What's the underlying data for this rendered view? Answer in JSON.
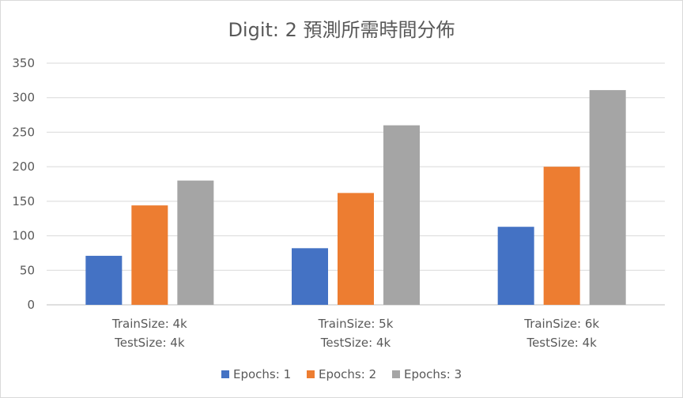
{
  "chart_data": {
    "type": "bar",
    "title": "Digit: 2  預測所需時間分佈",
    "xlabel": "",
    "ylabel": "",
    "categories": [
      [
        "TrainSize: 4k",
        "TestSize: 4k"
      ],
      [
        "TrainSize: 5k",
        "TestSize: 4k"
      ],
      [
        "TrainSize: 6k",
        "TestSize: 4k"
      ]
    ],
    "series": [
      {
        "name": "Epochs: 1",
        "color": "#4472c4",
        "values": [
          71,
          82,
          113
        ]
      },
      {
        "name": "Epochs: 2",
        "color": "#ed7d31",
        "values": [
          144,
          162,
          200
        ]
      },
      {
        "name": "Epochs: 3",
        "color": "#a5a5a5",
        "values": [
          180,
          260,
          311
        ]
      }
    ],
    "ylim": [
      0,
      350
    ],
    "yticks": [
      "0",
      "50",
      "100",
      "150",
      "200",
      "250",
      "300",
      "350"
    ],
    "grid": true,
    "legend_position": "bottom"
  }
}
